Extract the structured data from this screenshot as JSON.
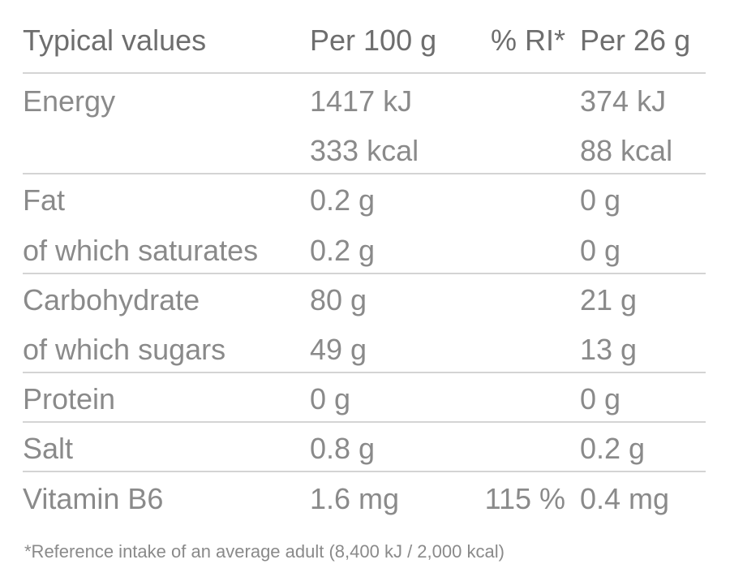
{
  "table": {
    "header": {
      "nutrient": "Typical values",
      "per_100g": "Per 100 g",
      "ri": "% RI*",
      "per_serving": "Per 26 g"
    },
    "groups": [
      [
        {
          "nutrient": "Energy",
          "per_100g": "1417 kJ",
          "per_serving": "374 kJ"
        },
        {
          "per_100g": "333 kcal",
          "per_serving": "88 kcal"
        }
      ],
      [
        {
          "nutrient": "Fat",
          "per_100g": "0.2 g",
          "per_serving": "0 g"
        },
        {
          "nutrient": "of which saturates",
          "per_100g": "0.2 g",
          "per_serving": "0 g"
        }
      ],
      [
        {
          "nutrient": "Carbohydrate",
          "per_100g": "80 g",
          "per_serving": "21 g"
        },
        {
          "nutrient": "of which sugars",
          "per_100g": "49 g",
          "per_serving": "13 g"
        }
      ],
      [
        {
          "nutrient": "Protein",
          "per_100g": "0 g",
          "per_serving": "0 g"
        }
      ],
      [
        {
          "nutrient": "Salt",
          "per_100g": "0.8 g",
          "per_serving": "0.2 g"
        }
      ],
      [
        {
          "nutrient": "Vitamin B6",
          "per_100g": "1.6 mg",
          "ri": "115 %",
          "per_serving": "0.4 mg"
        }
      ]
    ],
    "footnote": "*Reference intake of an average adult (8,400 kJ / 2,000 kcal)"
  }
}
